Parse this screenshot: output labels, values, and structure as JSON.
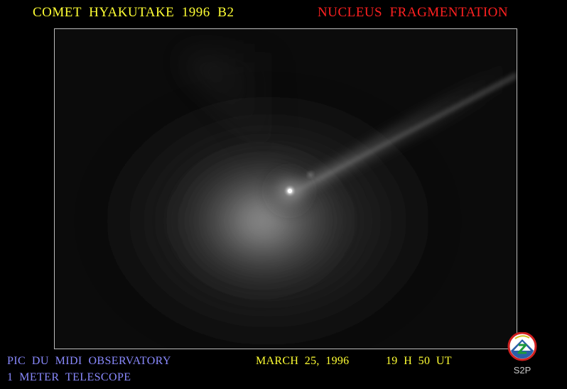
{
  "header": {
    "title_left": "COMET  HYAKUTAKE  1996  B2",
    "title_right": "NUCLEUS  FRAGMENTATION"
  },
  "footer": {
    "observatory": "PIC  DU  MIDI  OBSERVATORY",
    "telescope": "1  METER  TELESCOPE",
    "date": "MARCH  25,  1996",
    "time": "19  H  50  UT"
  },
  "logo": {
    "label": "S2P"
  },
  "colors": {
    "title_left": "#ffff33",
    "title_right": "#ff2020",
    "footer_left": "#8a8aff",
    "footer_right": "#ffff33",
    "frame_border": "#bdbdbd",
    "logo_label": "#c8c8c8",
    "logo_ring": "#d02020",
    "logo_disk": "#2a5fa8"
  }
}
